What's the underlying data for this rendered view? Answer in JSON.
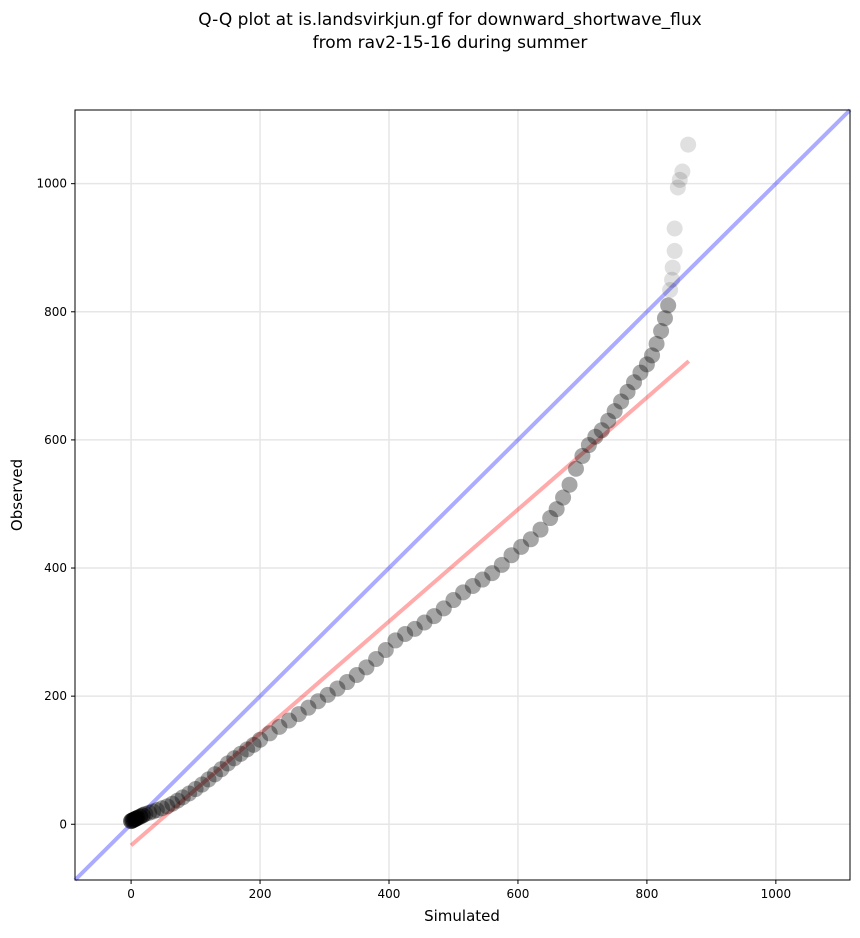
{
  "chart_data": {
    "type": "scatter",
    "title_line1": "Q-Q plot at is.landsvirkjun.gf for downward_shortwave_flux",
    "title_line2": "from rav2-15-16 during summer",
    "xlabel": "Simulated",
    "ylabel": "Observed",
    "xlim": [
      -87,
      1115
    ],
    "ylim": [
      -87,
      1115
    ],
    "xticks": [
      "0",
      "200",
      "400",
      "600",
      "800",
      "1000"
    ],
    "yticks": [
      "0",
      "200",
      "400",
      "600",
      "800",
      "1000"
    ],
    "tick_values": [
      0,
      200,
      400,
      600,
      800,
      1000
    ],
    "grid": true,
    "identity_line": {
      "color": "#0000ff",
      "from": [
        -87,
        -87
      ],
      "to": [
        1115,
        1115
      ]
    },
    "fit_line": {
      "color": "#ff0000",
      "from": [
        0,
        -33
      ],
      "to": [
        865,
        723
      ]
    },
    "points": {
      "sim": [
        0,
        2,
        4,
        6,
        8,
        10,
        14,
        18,
        22,
        28,
        34,
        40,
        48,
        56,
        64,
        72,
        80,
        90,
        100,
        110,
        120,
        130,
        140,
        150,
        160,
        170,
        180,
        190,
        200,
        215,
        230,
        245,
        260,
        275,
        290,
        305,
        320,
        335,
        350,
        365,
        380,
        395,
        410,
        425,
        440,
        455,
        470,
        485,
        500,
        515,
        530,
        545,
        560,
        575,
        590,
        605,
        620,
        635,
        650,
        660,
        670,
        680,
        690,
        700,
        710,
        720,
        730,
        740,
        750,
        760,
        770,
        780,
        790,
        800,
        808,
        815,
        822,
        828,
        833,
        836,
        839,
        840,
        843,
        843,
        848,
        851,
        855,
        864
      ],
      "obs": [
        5,
        6,
        7,
        8,
        9,
        10,
        12,
        14,
        16,
        18,
        20,
        22,
        25,
        28,
        32,
        37,
        42,
        48,
        55,
        62,
        70,
        78,
        86,
        95,
        103,
        110,
        117,
        124,
        132,
        142,
        152,
        162,
        172,
        182,
        192,
        202,
        212,
        222,
        233,
        245,
        258,
        272,
        287,
        297,
        305,
        315,
        325,
        337,
        350,
        362,
        372,
        382,
        392,
        405,
        420,
        433,
        445,
        460,
        478,
        492,
        510,
        530,
        555,
        575,
        592,
        605,
        615,
        630,
        645,
        660,
        675,
        690,
        705,
        718,
        732,
        750,
        770,
        790,
        810,
        834,
        850,
        869,
        895,
        930,
        994,
        1006,
        1019,
        1061
      ]
    }
  }
}
